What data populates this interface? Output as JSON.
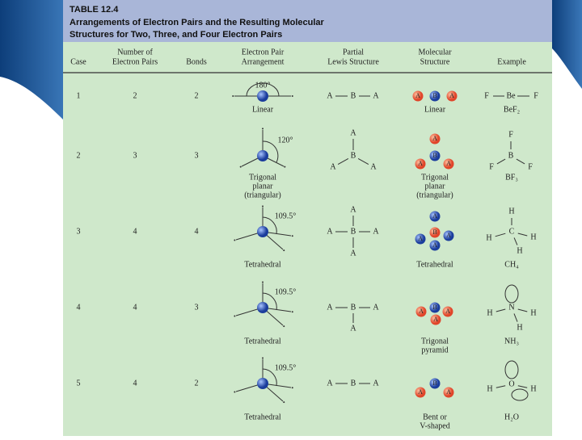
{
  "table": {
    "title": "TABLE 12.4",
    "subtitle": [
      "Arrangements of Electron Pairs and the Resulting Molecular",
      "Structures for Two, Three, and Four Electron Pairs"
    ],
    "columns": [
      [
        "Case"
      ],
      [
        "Number of",
        "Electron Pairs"
      ],
      [
        "Bonds"
      ],
      [
        "Electron Pair",
        "Arrangement"
      ],
      [
        "Partial",
        "Lewis Structure"
      ],
      [
        "Molecular",
        "Structure"
      ],
      [
        "Example"
      ]
    ],
    "rows": [
      {
        "case": "1",
        "pairs": "2",
        "bonds": "2",
        "angle": "180°",
        "arrangement": [
          "Linear"
        ],
        "lewis": [
          "A",
          "B",
          "A"
        ],
        "molecule": [
          "A",
          "B",
          "A"
        ],
        "structure": [
          "Linear"
        ],
        "example": [
          "F",
          "Be",
          "F"
        ],
        "formula": "BeF₂"
      },
      {
        "case": "2",
        "pairs": "3",
        "bonds": "3",
        "angle": "120°",
        "arrangement": [
          "Trigonal",
          "planar",
          "(triangular)"
        ],
        "lewis": [
          "A",
          "B",
          "A",
          "A"
        ],
        "molecule": [
          "A",
          "B",
          "A",
          "A"
        ],
        "structure": [
          "Trigonal",
          "planar",
          "(triangular)"
        ],
        "example": [
          "F",
          "B",
          "F",
          "F"
        ],
        "formula": "BF₃"
      },
      {
        "case": "3",
        "pairs": "4",
        "bonds": "4",
        "angle": "109.5°",
        "arrangement": [
          "Tetrahedral"
        ],
        "lewis": [
          "A",
          "A",
          "B",
          "A",
          "A"
        ],
        "molecule": [
          "A",
          "B",
          "A",
          "A",
          "A"
        ],
        "structure": [
          "Tetrahedral"
        ],
        "example": [
          "H",
          "H",
          "C",
          "H",
          "H"
        ],
        "formula": "CH₄"
      },
      {
        "case": "4",
        "pairs": "4",
        "bonds": "3",
        "angle": "109.5°",
        "arrangement": [
          "Tetrahedral"
        ],
        "lewis": [
          "A",
          "B",
          "A",
          "A"
        ],
        "molecule": [
          "B",
          "A",
          "A",
          "A"
        ],
        "structure": [
          "Trigonal",
          "pyramid"
        ],
        "example": [
          "N",
          "H",
          "H",
          "H"
        ],
        "formula": "NH₃"
      },
      {
        "case": "5",
        "pairs": "4",
        "bonds": "2",
        "angle": "109.5°",
        "arrangement": [
          "Tetrahedral"
        ],
        "lewis": [
          "A",
          "B",
          "A"
        ],
        "molecule": [
          "B",
          "A",
          "A"
        ],
        "structure": [
          "Bent or",
          "V-shaped"
        ],
        "example": [
          "O",
          "H",
          "H"
        ],
        "formula": "H₂O"
      }
    ]
  }
}
